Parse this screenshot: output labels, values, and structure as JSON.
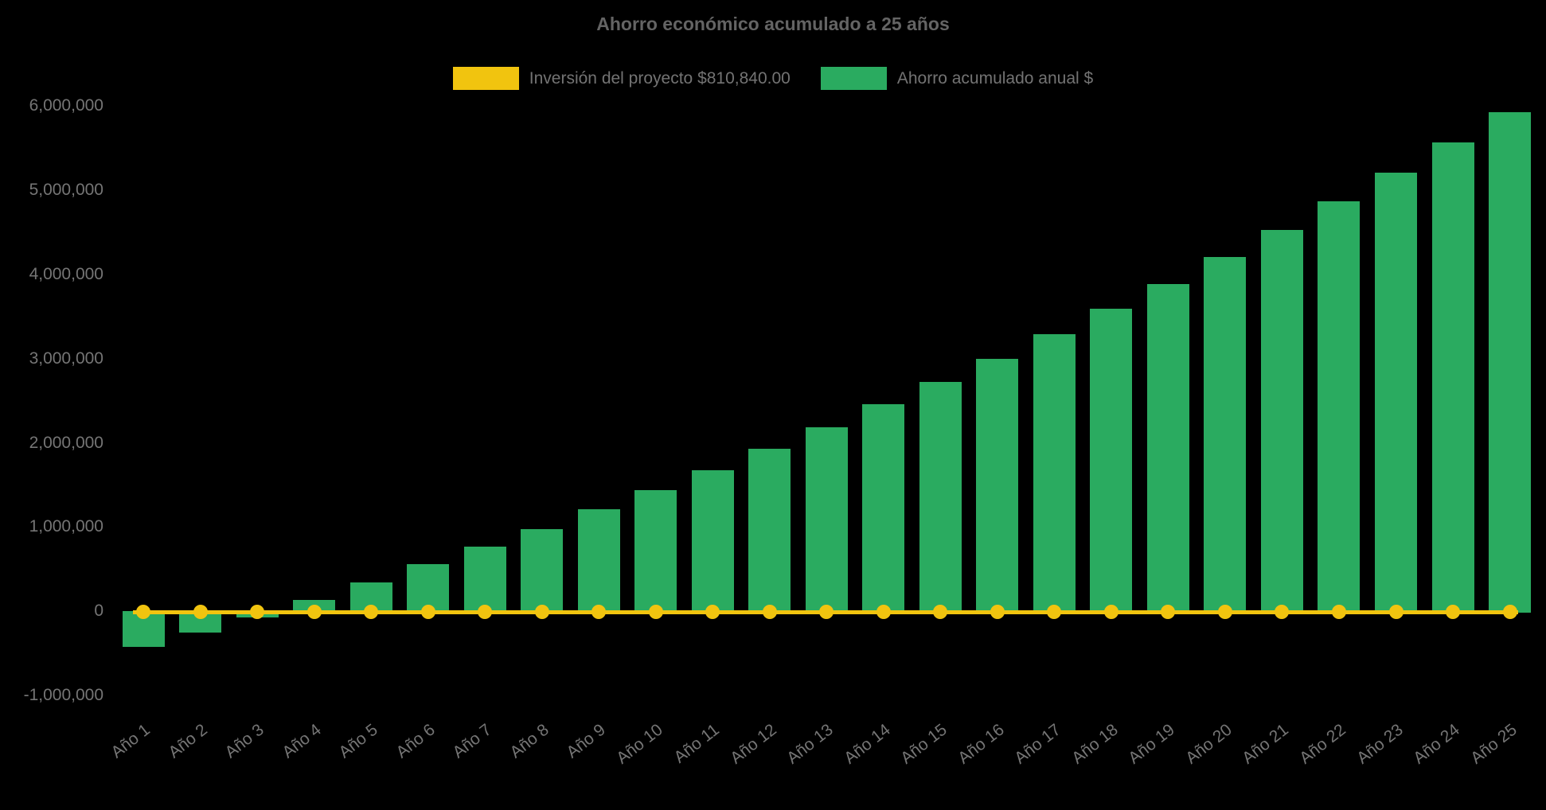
{
  "title": "Ahorro económico acumulado a 25 años",
  "legend": {
    "items": [
      {
        "id": "investment",
        "label": "Inversión del proyecto $810,840.00",
        "color": "#f1c40f"
      },
      {
        "id": "savings",
        "label": "Ahorro acumulado anual $",
        "color": "#2aab60"
      }
    ]
  },
  "chart_data": {
    "type": "bar",
    "title": "Ahorro económico acumulado a 25 años",
    "categories": [
      "Año 1",
      "Año 2",
      "Año 3",
      "Año 4",
      "Año 5",
      "Año 6",
      "Año 7",
      "Año 8",
      "Año 9",
      "Año 10",
      "Año 11",
      "Año 12",
      "Año 13",
      "Año 14",
      "Año 15",
      "Año 16",
      "Año 17",
      "Año 18",
      "Año 19",
      "Año 20",
      "Año 21",
      "Año 22",
      "Año 23",
      "Año 24",
      "Año 25"
    ],
    "series": [
      {
        "name": "Inversión del proyecto $810,840.00",
        "type": "line",
        "color": "#f1c40f",
        "investment_amount_label": "$810,840.00",
        "values": [
          0,
          0,
          0,
          0,
          0,
          0,
          0,
          0,
          0,
          0,
          0,
          0,
          0,
          0,
          0,
          0,
          0,
          0,
          0,
          0,
          0,
          0,
          0,
          0,
          0
        ]
      },
      {
        "name": "Ahorro acumulado anual $",
        "type": "bar",
        "color": "#2aab60",
        "values": [
          -425000,
          -250000,
          -70000,
          140000,
          340000,
          560000,
          765000,
          975000,
          1210000,
          1440000,
          1680000,
          1930000,
          2190000,
          2455000,
          2720000,
          3000000,
          3295000,
          3590000,
          3890000,
          4205000,
          4525000,
          4865000,
          5205000,
          5565000,
          5925000
        ]
      }
    ],
    "ylim": [
      -1000000,
      6000000
    ],
    "yticks": [
      {
        "label": "6,000,000",
        "value": 6000000
      },
      {
        "label": "5,000,000",
        "value": 5000000
      },
      {
        "label": "4,000,000",
        "value": 4000000
      },
      {
        "label": "3,000,000",
        "value": 3000000
      },
      {
        "label": "2,000,000",
        "value": 2000000
      },
      {
        "label": "1,000,000",
        "value": 1000000
      },
      {
        "label": "0",
        "value": 0
      },
      {
        "label": "-1,000,000",
        "value": -1000000
      }
    ],
    "grid": false,
    "legend_position": "top",
    "background": "#000000",
    "text_colors": {
      "title": "#646464",
      "legend": "#737373",
      "ticks": "#757575"
    }
  }
}
